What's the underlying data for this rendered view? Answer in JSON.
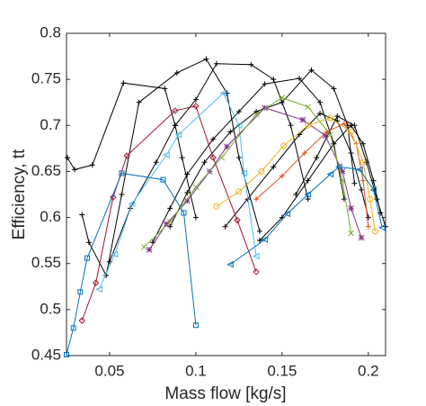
{
  "chart_data": {
    "type": "line",
    "xlabel": "Mass flow [kg/s]",
    "ylabel": "Efficiency, tt",
    "xlim": [
      0.025,
      0.21
    ],
    "ylim": [
      0.45,
      0.8
    ],
    "xticks": [
      0.05,
      0.1,
      0.15,
      0.2
    ],
    "yticks": [
      0.45,
      0.5,
      0.55,
      0.6,
      0.65,
      0.7,
      0.75,
      0.8
    ],
    "series": [
      {
        "color": "#000000",
        "marker": "plus",
        "x": [
          0.0255,
          0.0297,
          0.04,
          0.058,
          0.082,
          0.088,
          0.092,
          0.1
        ],
        "values": [
          0.665,
          0.652,
          0.657,
          0.746,
          0.74,
          0.7,
          0.665,
          0.6
        ]
      },
      {
        "color": "#000000",
        "marker": "plus",
        "x": [
          0.034,
          0.038,
          0.048,
          0.057,
          0.067,
          0.089,
          0.106,
          0.118,
          0.125,
          0.137
        ],
        "values": [
          0.603,
          0.573,
          0.537,
          0.625,
          0.725,
          0.757,
          0.772,
          0.735,
          0.665,
          0.585
        ]
      },
      {
        "color": "#000000",
        "marker": "plus",
        "x": [
          0.05,
          0.062,
          0.077,
          0.088,
          0.1,
          0.112,
          0.132,
          0.145,
          0.155,
          0.165
        ],
        "values": [
          0.552,
          0.61,
          0.66,
          0.7,
          0.728,
          0.767,
          0.766,
          0.75,
          0.7,
          0.62
        ]
      },
      {
        "color": "#000000",
        "marker": "plus",
        "x": [
          0.075,
          0.085,
          0.095,
          0.11,
          0.125,
          0.14,
          0.16,
          0.172,
          0.18,
          0.186
        ],
        "values": [
          0.573,
          0.61,
          0.647,
          0.685,
          0.715,
          0.745,
          0.751,
          0.725,
          0.68,
          0.62
        ]
      },
      {
        "color": "#000000",
        "marker": "plus",
        "x": [
          0.085,
          0.095,
          0.105,
          0.12,
          0.135,
          0.15,
          0.167,
          0.18,
          0.188,
          0.192
        ],
        "values": [
          0.59,
          0.627,
          0.66,
          0.693,
          0.715,
          0.725,
          0.76,
          0.74,
          0.7,
          0.637
        ]
      },
      {
        "color": "#000000",
        "marker": "plus",
        "x": [
          0.117,
          0.13,
          0.145,
          0.16,
          0.172,
          0.182,
          0.19,
          0.196,
          0.2
        ],
        "values": [
          0.59,
          0.62,
          0.655,
          0.69,
          0.713,
          0.705,
          0.67,
          0.63,
          0.6
        ]
      },
      {
        "color": "#000000",
        "marker": "plus",
        "x": [
          0.137,
          0.15,
          0.165,
          0.18,
          0.19,
          0.197,
          0.203,
          0.207
        ],
        "values": [
          0.575,
          0.6,
          0.64,
          0.68,
          0.7,
          0.68,
          0.64,
          0.605
        ]
      },
      {
        "color": "#000000",
        "marker": "plus",
        "x": [
          0.158,
          0.17,
          0.182,
          0.192,
          0.199,
          0.205,
          0.21
        ],
        "values": [
          0.625,
          0.665,
          0.71,
          0.7,
          0.66,
          0.62,
          0.59
        ]
      },
      {
        "color": "#A2142F",
        "marker": "diamond",
        "x": [
          0.034,
          0.042,
          0.052,
          0.06,
          0.088,
          0.1,
          0.11,
          0.124,
          0.135
        ],
        "values": [
          0.488,
          0.529,
          0.622,
          0.667,
          0.716,
          0.721,
          0.665,
          0.597,
          0.541
        ]
      },
      {
        "color": "#0072BD",
        "marker": "square",
        "x": [
          0.025,
          0.029,
          0.033,
          0.037,
          0.057,
          0.081,
          0.093,
          0.1
        ],
        "values": [
          0.451,
          0.48,
          0.519,
          0.556,
          0.648,
          0.641,
          0.605,
          0.483
        ]
      },
      {
        "color": "#4DBEEE",
        "marker": "tri-left",
        "x": [
          0.044,
          0.053,
          0.063,
          0.083,
          0.09,
          0.116,
          0.125,
          0.128,
          0.135
        ],
        "values": [
          0.522,
          0.56,
          0.615,
          0.668,
          0.69,
          0.735,
          0.7,
          0.648,
          0.558
        ]
      },
      {
        "color": "#7E2F8E",
        "marker": "star",
        "x": [
          0.073,
          0.083,
          0.095,
          0.108,
          0.118,
          0.14,
          0.162,
          0.175,
          0.185,
          0.19,
          0.196
        ],
        "values": [
          0.565,
          0.593,
          0.618,
          0.65,
          0.677,
          0.719,
          0.706,
          0.689,
          0.65,
          0.61,
          0.578
        ]
      },
      {
        "color": "#77AC30",
        "marker": "cross",
        "x": [
          0.07,
          0.085,
          0.1,
          0.115,
          0.135,
          0.15,
          0.165,
          0.178,
          0.185,
          0.19
        ],
        "values": [
          0.568,
          0.595,
          0.633,
          0.665,
          0.712,
          0.73,
          0.72,
          0.69,
          0.64,
          0.583
        ]
      },
      {
        "color": "#D95319",
        "marker": "plus",
        "x": [
          0.135,
          0.15,
          0.163,
          0.176,
          0.186,
          0.193,
          0.197,
          0.2
        ],
        "values": [
          0.62,
          0.645,
          0.67,
          0.693,
          0.702,
          0.68,
          0.64,
          0.59
        ]
      },
      {
        "color": "#EDB120",
        "marker": "circle",
        "x": [
          0.112,
          0.125,
          0.138,
          0.151,
          0.165,
          0.178,
          0.19,
          0.197,
          0.201,
          0.204
        ],
        "values": [
          0.612,
          0.628,
          0.65,
          0.678,
          0.7,
          0.708,
          0.693,
          0.66,
          0.62,
          0.585
        ]
      },
      {
        "color": "#0072BD",
        "marker": "tri-left",
        "x": [
          0.12,
          0.14,
          0.153,
          0.165,
          0.178,
          0.183,
          0.195,
          0.203,
          0.208
        ],
        "values": [
          0.549,
          0.576,
          0.604,
          0.625,
          0.647,
          0.655,
          0.652,
          0.63,
          0.589
        ]
      }
    ]
  }
}
